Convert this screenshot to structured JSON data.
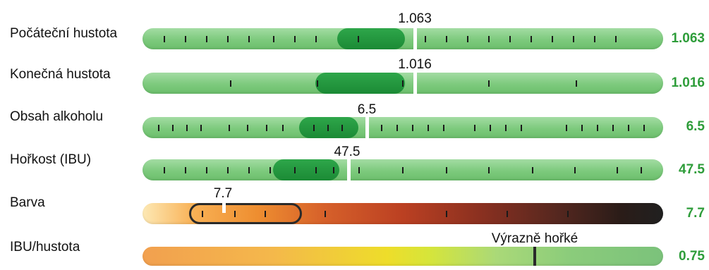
{
  "rows": [
    {
      "label": "Počáteční hustota",
      "value": "1.063",
      "marker_label": "1.063"
    },
    {
      "label": "Konečná hustota",
      "value": "1.016",
      "marker_label": "1.016"
    },
    {
      "label": "Obsah alkoholu",
      "value": "6.5",
      "marker_label": "6.5"
    },
    {
      "label": "Hořkost (IBU)",
      "value": "47.5",
      "marker_label": "47.5"
    },
    {
      "label": "Barva",
      "value": "7.7",
      "marker_label": "7.7"
    },
    {
      "label": "IBU/hustota",
      "value": "0.75",
      "marker_label": "Výrazně hořké"
    }
  ],
  "colors": {
    "value_green": "#2e9d3a",
    "bar_green": "#7dca7d",
    "range_green": "#1b8a35"
  }
}
